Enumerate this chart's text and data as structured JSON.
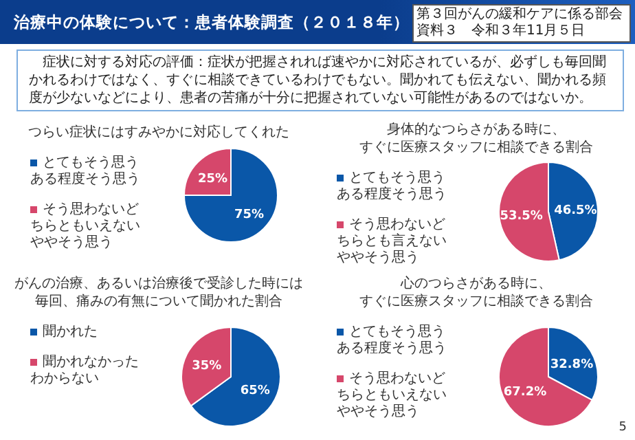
{
  "chart_data": [
    {
      "type": "pie",
      "title": "つらい症状にはすみやかに対応してくれた",
      "categories": [
        "とてもそう思うある程度そう思う",
        "そう思わないどちらともいえないややそう思う"
      ],
      "values": [
        75,
        25
      ],
      "value_labels": [
        "75%",
        "25%"
      ],
      "colors": [
        "#0a57a8",
        "#d6476b"
      ],
      "legend": "left",
      "annotations": [
        "治療中の体験について：患者体験調査（２０１８年）",
        "第３回がんの緩和ケアに係る部会資料３　令和３年11月５日",
        "症状に対する対応の評価：症状が把握されれば速やかに対応されているが、必ずしも毎回聞かれるわけではなく、すぐに相談できているわけでもない。聞かれても伝えない、聞かれる頻度が少ないなどにより、患者の苦痛が十分に把握されていない可能性があるのではないか。"
      ]
    },
    {
      "type": "pie",
      "title": "身体的なつらさがある時に、すぐに医療スタッフに相談できる割合",
      "categories": [
        "とてもそう思うある程度そう思う",
        "そう思わないどちらとも言えないややそう思う"
      ],
      "values": [
        46.5,
        53.5
      ],
      "value_labels": [
        "46.5%",
        "53.5%"
      ],
      "colors": [
        "#0a57a8",
        "#d6476b"
      ],
      "legend": "left"
    },
    {
      "type": "pie",
      "title": "がんの治療、あるいは治療後で受診した時には毎回、痛みの有無について聞かれた割合",
      "categories": [
        "聞かれた",
        "聞かれなかったわからない"
      ],
      "values": [
        65,
        35
      ],
      "value_labels": [
        "65%",
        "35%"
      ],
      "colors": [
        "#0a57a8",
        "#d6476b"
      ],
      "legend": "left"
    },
    {
      "type": "pie",
      "title": "心のつらさがある時に、すぐに医療スタッフに相談できる割合",
      "categories": [
        "とてもそう思うある程度そう思う",
        "そう思わないどちらともいえないややそう思う"
      ],
      "values": [
        32.8,
        67.2
      ],
      "value_labels": [
        "32.8%",
        "67.2%"
      ],
      "colors": [
        "#0a57a8",
        "#d6476b"
      ],
      "legend": "left",
      "annotations": [
        "5"
      ]
    }
  ]
}
